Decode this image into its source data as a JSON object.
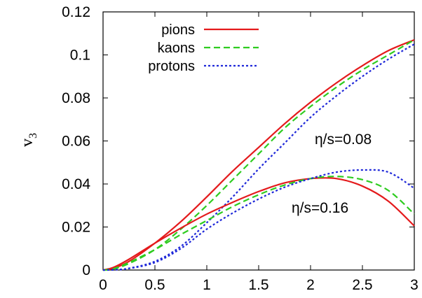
{
  "chart_data": {
    "type": "line",
    "title": "",
    "xlabel": "",
    "ylabel": "v",
    "ylabel_subscript": "3",
    "xlim": [
      0,
      3
    ],
    "ylim": [
      0,
      0.12
    ],
    "x_ticks": [
      "0",
      "0.5",
      "1",
      "1.5",
      "2",
      "2.5",
      "3"
    ],
    "y_ticks": [
      "0",
      "0.02",
      "0.04",
      "0.06",
      "0.08",
      "0.1",
      "0.12"
    ],
    "grid": false,
    "legend_position": "top-left",
    "legend": [
      {
        "name": "pions",
        "color": "#e41a1c",
        "dash": "solid"
      },
      {
        "name": "kaons",
        "color": "#2ecc1f",
        "dash": "dashed"
      },
      {
        "name": "protons",
        "color": "#1f28d9",
        "dash": "dotted"
      }
    ],
    "annotations": [
      {
        "text": "η/s=0.08",
        "x": 2.04,
        "y": 0.06
      },
      {
        "text": "η/s=0.16",
        "x": 1.82,
        "y": 0.029
      }
    ],
    "series": [
      {
        "name": "pions",
        "group": "η/s=0.08",
        "color": "#e41a1c",
        "dash": "solid",
        "x": [
          0,
          0.1,
          0.25,
          0.5,
          0.75,
          1.0,
          1.25,
          1.5,
          1.75,
          2.0,
          2.25,
          2.5,
          2.75,
          3.0
        ],
        "y": [
          0,
          0.0008,
          0.004,
          0.0125,
          0.0225,
          0.034,
          0.046,
          0.057,
          0.068,
          0.078,
          0.087,
          0.095,
          0.102,
          0.107
        ]
      },
      {
        "name": "kaons",
        "group": "η/s=0.08",
        "color": "#2ecc1f",
        "dash": "dashed",
        "x": [
          0,
          0.1,
          0.25,
          0.5,
          0.75,
          1.0,
          1.25,
          1.5,
          1.75,
          2.0,
          2.25,
          2.5,
          2.75,
          3.0
        ],
        "y": [
          0,
          0.0005,
          0.003,
          0.0095,
          0.019,
          0.03,
          0.042,
          0.054,
          0.066,
          0.076,
          0.085,
          0.093,
          0.1,
          0.107
        ]
      },
      {
        "name": "protons",
        "group": "η/s=0.08",
        "color": "#1f28d9",
        "dash": "dotted",
        "x": [
          0,
          0.1,
          0.25,
          0.5,
          0.75,
          1.0,
          1.25,
          1.5,
          1.75,
          2.0,
          2.25,
          2.5,
          2.75,
          3.0
        ],
        "y": [
          0,
          0.0001,
          0.0008,
          0.004,
          0.011,
          0.022,
          0.034,
          0.047,
          0.059,
          0.071,
          0.081,
          0.09,
          0.098,
          0.105
        ]
      },
      {
        "name": "pions",
        "group": "η/s=0.16",
        "color": "#e41a1c",
        "dash": "solid",
        "x": [
          0,
          0.1,
          0.25,
          0.5,
          0.75,
          1.0,
          1.25,
          1.5,
          1.75,
          2.0,
          2.25,
          2.5,
          2.75,
          3.0
        ],
        "y": [
          0,
          0.0012,
          0.005,
          0.0125,
          0.0195,
          0.026,
          0.0315,
          0.0365,
          0.0405,
          0.0425,
          0.0425,
          0.039,
          0.032,
          0.0205
        ]
      },
      {
        "name": "kaons",
        "group": "η/s=0.16",
        "color": "#2ecc1f",
        "dash": "dashed",
        "x": [
          0,
          0.1,
          0.25,
          0.5,
          0.75,
          1.0,
          1.25,
          1.5,
          1.75,
          2.0,
          2.25,
          2.5,
          2.75,
          3.0
        ],
        "y": [
          0,
          0.0006,
          0.0035,
          0.0095,
          0.0165,
          0.023,
          0.0295,
          0.035,
          0.0395,
          0.0425,
          0.0435,
          0.042,
          0.037,
          0.026
        ]
      },
      {
        "name": "protons",
        "group": "η/s=0.16",
        "color": "#1f28d9",
        "dash": "dotted",
        "x": [
          0,
          0.1,
          0.25,
          0.5,
          0.75,
          1.0,
          1.25,
          1.5,
          1.75,
          2.0,
          2.25,
          2.5,
          2.75,
          3.0
        ],
        "y": [
          0,
          0.0001,
          0.0007,
          0.0035,
          0.01,
          0.019,
          0.0265,
          0.033,
          0.0385,
          0.0425,
          0.0455,
          0.0465,
          0.0455,
          0.038
        ]
      }
    ]
  }
}
